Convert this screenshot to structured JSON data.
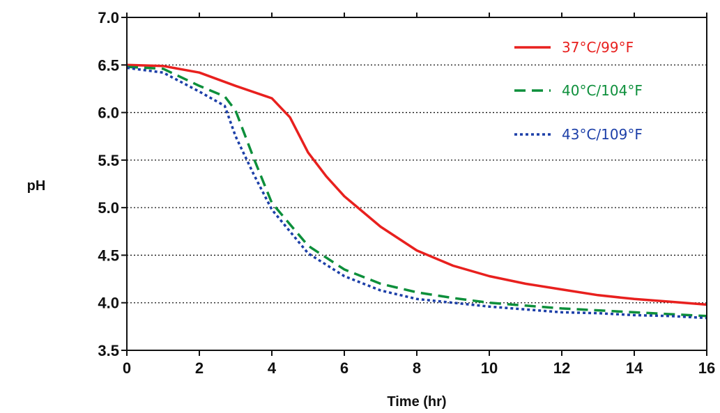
{
  "chart_data": {
    "type": "line",
    "title": "",
    "xlabel": "Time (hr)",
    "ylabel": "pH",
    "xlim": [
      0,
      16
    ],
    "ylim": [
      3.5,
      7.0
    ],
    "x_ticks": [
      0,
      2,
      4,
      6,
      8,
      10,
      12,
      14,
      16
    ],
    "y_ticks": [
      "3.5",
      "4.0",
      "4.5",
      "5.0",
      "5.5",
      "6.0",
      "6.5",
      "7.0"
    ],
    "grid": "horizontal dotted",
    "legend_position": "top-right",
    "series": [
      {
        "name": "37°C/99°F",
        "color": "#e8201e",
        "style": "solid",
        "x": [
          0,
          1,
          2,
          3,
          4,
          4.5,
          5,
          5.5,
          6,
          7,
          8,
          9,
          10,
          11,
          12,
          13,
          14,
          15,
          16
        ],
        "y": [
          6.5,
          6.49,
          6.42,
          6.28,
          6.15,
          5.95,
          5.58,
          5.33,
          5.12,
          4.8,
          4.55,
          4.39,
          4.28,
          4.2,
          4.14,
          4.08,
          4.04,
          4.01,
          3.98
        ]
      },
      {
        "name": "40°C/104°F",
        "color": "#0d8f3b",
        "style": "dashed",
        "x": [
          0,
          1,
          2,
          2.7,
          3,
          3.5,
          4,
          5,
          6,
          7,
          8,
          9,
          10,
          11,
          12,
          13,
          14,
          15,
          16
        ],
        "y": [
          6.48,
          6.46,
          6.28,
          6.17,
          6.02,
          5.52,
          5.05,
          4.6,
          4.35,
          4.2,
          4.11,
          4.05,
          4.0,
          3.97,
          3.94,
          3.92,
          3.9,
          3.88,
          3.86
        ]
      },
      {
        "name": "43°C/109°F",
        "color": "#1c3fa8",
        "style": "dotted",
        "x": [
          0,
          1,
          2,
          2.7,
          3,
          3.5,
          4,
          5,
          6,
          7,
          8,
          9,
          10,
          11,
          12,
          13,
          14,
          15,
          16
        ],
        "y": [
          6.47,
          6.42,
          6.22,
          6.07,
          5.75,
          5.35,
          4.98,
          4.52,
          4.28,
          4.13,
          4.04,
          4.0,
          3.96,
          3.93,
          3.9,
          3.89,
          3.87,
          3.86,
          3.84
        ]
      }
    ]
  }
}
